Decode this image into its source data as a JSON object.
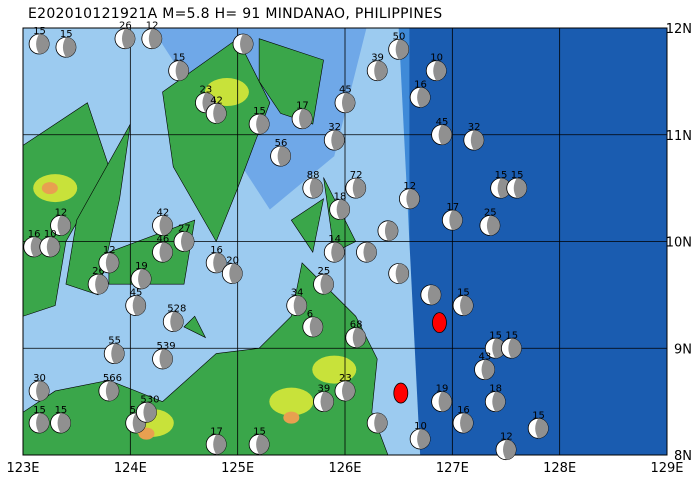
{
  "title": "E202010121921A M=5.8 H= 91 MINDANAO, PHILIPPINES",
  "extent": {
    "lon": [
      123,
      129
    ],
    "lat": [
      8,
      12
    ]
  },
  "lon_ticks": [
    "123E",
    "124E",
    "125E",
    "126E",
    "127E",
    "128E",
    "129E"
  ],
  "lat_ticks": [
    "8N",
    "9N",
    "10N",
    "11N",
    "12N"
  ],
  "colors": {
    "deep_ocean": "#1a5cb0",
    "mid_ocean": "#3f8ad8",
    "shallow": "#9ccbf0",
    "lowland": "#3aa64a",
    "upland": "#c8e23a",
    "highland": "#e8a050",
    "mech_fill": "#909090",
    "target": "#ff0000"
  },
  "target_events": [
    {
      "lon": 126.88,
      "lat": 9.24
    },
    {
      "lon": 126.52,
      "lat": 8.58
    }
  ],
  "events": [
    {
      "lon": 123.15,
      "lat": 11.85,
      "label": "15"
    },
    {
      "lon": 123.4,
      "lat": 11.82,
      "label": "15"
    },
    {
      "lon": 123.95,
      "lat": 11.9,
      "label": "26"
    },
    {
      "lon": 124.2,
      "lat": 11.9,
      "label": "12"
    },
    {
      "lon": 124.45,
      "lat": 11.6,
      "label": "15"
    },
    {
      "lon": 124.7,
      "lat": 11.3,
      "label": "23"
    },
    {
      "lon": 124.8,
      "lat": 11.2,
      "label": "42"
    },
    {
      "lon": 125.05,
      "lat": 11.85,
      "label": ""
    },
    {
      "lon": 125.2,
      "lat": 11.1,
      "label": "15"
    },
    {
      "lon": 125.6,
      "lat": 11.15,
      "label": "17"
    },
    {
      "lon": 125.9,
      "lat": 10.95,
      "label": "32"
    },
    {
      "lon": 125.4,
      "lat": 10.8,
      "label": "56"
    },
    {
      "lon": 125.7,
      "lat": 10.5,
      "label": "88"
    },
    {
      "lon": 125.95,
      "lat": 10.3,
      "label": "18"
    },
    {
      "lon": 126.1,
      "lat": 10.5,
      "label": "72"
    },
    {
      "lon": 126.0,
      "lat": 11.3,
      "label": "45"
    },
    {
      "lon": 126.3,
      "lat": 11.6,
      "label": "39"
    },
    {
      "lon": 126.5,
      "lat": 11.8,
      "label": "50"
    },
    {
      "lon": 126.7,
      "lat": 11.35,
      "label": "16"
    },
    {
      "lon": 126.85,
      "lat": 11.6,
      "label": "10"
    },
    {
      "lon": 126.9,
      "lat": 11.0,
      "label": "45"
    },
    {
      "lon": 127.2,
      "lat": 10.95,
      "label": "32"
    },
    {
      "lon": 127.45,
      "lat": 10.5,
      "label": "15"
    },
    {
      "lon": 127.6,
      "lat": 10.5,
      "label": "15"
    },
    {
      "lon": 127.35,
      "lat": 10.15,
      "label": "25"
    },
    {
      "lon": 127.0,
      "lat": 10.2,
      "label": "17"
    },
    {
      "lon": 126.6,
      "lat": 10.4,
      "label": "12"
    },
    {
      "lon": 126.4,
      "lat": 10.1,
      "label": ""
    },
    {
      "lon": 126.2,
      "lat": 9.9,
      "label": ""
    },
    {
      "lon": 126.5,
      "lat": 9.7,
      "label": ""
    },
    {
      "lon": 126.8,
      "lat": 9.5,
      "label": ""
    },
    {
      "lon": 127.1,
      "lat": 9.4,
      "label": "15"
    },
    {
      "lon": 127.4,
      "lat": 9.0,
      "label": "15"
    },
    {
      "lon": 127.55,
      "lat": 9.0,
      "label": "15"
    },
    {
      "lon": 127.3,
      "lat": 8.8,
      "label": "43"
    },
    {
      "lon": 127.4,
      "lat": 8.5,
      "label": "18"
    },
    {
      "lon": 127.8,
      "lat": 8.25,
      "label": "15"
    },
    {
      "lon": 127.5,
      "lat": 8.05,
      "label": "12"
    },
    {
      "lon": 127.1,
      "lat": 8.3,
      "label": "16"
    },
    {
      "lon": 126.9,
      "lat": 8.5,
      "label": "19"
    },
    {
      "lon": 126.7,
      "lat": 8.15,
      "label": "10"
    },
    {
      "lon": 126.3,
      "lat": 8.3,
      "label": ""
    },
    {
      "lon": 126.0,
      "lat": 8.6,
      "label": "23"
    },
    {
      "lon": 125.8,
      "lat": 8.5,
      "label": "39"
    },
    {
      "lon": 126.1,
      "lat": 9.1,
      "label": "68"
    },
    {
      "lon": 125.7,
      "lat": 9.2,
      "label": "6"
    },
    {
      "lon": 125.55,
      "lat": 9.4,
      "label": "34"
    },
    {
      "lon": 125.8,
      "lat": 9.6,
      "label": "25"
    },
    {
      "lon": 125.9,
      "lat": 9.9,
      "label": "14"
    },
    {
      "lon": 125.2,
      "lat": 8.1,
      "label": "15"
    },
    {
      "lon": 124.8,
      "lat": 8.1,
      "label": "17"
    },
    {
      "lon": 124.05,
      "lat": 8.3,
      "label": "566"
    },
    {
      "lon": 124.15,
      "lat": 8.4,
      "label": "530"
    },
    {
      "lon": 123.15,
      "lat": 8.6,
      "label": "30"
    },
    {
      "lon": 123.15,
      "lat": 8.3,
      "label": "15"
    },
    {
      "lon": 123.35,
      "lat": 8.3,
      "label": "15"
    },
    {
      "lon": 123.8,
      "lat": 8.6,
      "label": "566"
    },
    {
      "lon": 123.85,
      "lat": 8.95,
      "label": "55"
    },
    {
      "lon": 124.3,
      "lat": 8.9,
      "label": "539"
    },
    {
      "lon": 124.4,
      "lat": 9.25,
      "label": "528"
    },
    {
      "lon": 124.05,
      "lat": 9.4,
      "label": "45"
    },
    {
      "lon": 123.7,
      "lat": 9.6,
      "label": "26"
    },
    {
      "lon": 123.8,
      "lat": 9.8,
      "label": "12"
    },
    {
      "lon": 124.3,
      "lat": 9.9,
      "label": "46"
    },
    {
      "lon": 124.5,
      "lat": 10.0,
      "label": "27"
    },
    {
      "lon": 124.8,
      "lat": 9.8,
      "label": "16"
    },
    {
      "lon": 124.95,
      "lat": 9.7,
      "label": "20"
    },
    {
      "lon": 123.35,
      "lat": 10.15,
      "label": "12"
    },
    {
      "lon": 123.1,
      "lat": 9.95,
      "label": "16"
    },
    {
      "lon": 123.25,
      "lat": 9.95,
      "label": "10"
    },
    {
      "lon": 124.3,
      "lat": 10.15,
      "label": "42"
    },
    {
      "lon": 124.1,
      "lat": 9.65,
      "label": "19"
    }
  ]
}
